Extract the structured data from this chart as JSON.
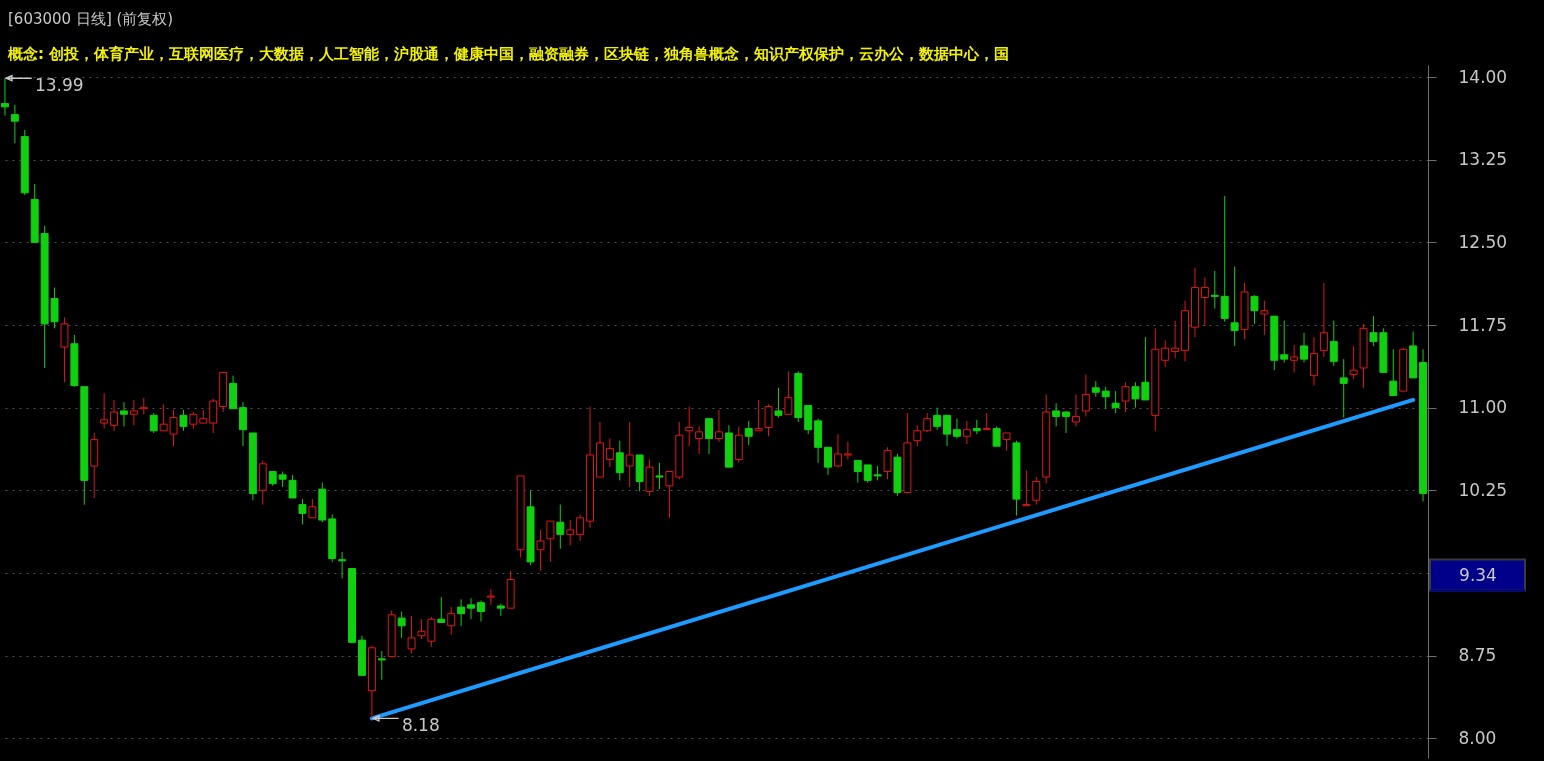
{
  "chart_data": {
    "type": "candlestick",
    "title": "[603000 日线]  (前复权)",
    "subtitle": "概念: 创投，体育产业，互联网医疗，大数据，人工智能，沪股通，健康中国，融资融券，区块链，独角兽概念，知识产权保护，云办公，数据中心，国",
    "categories": [
      null,
      null,
      null,
      null,
      null,
      null,
      null,
      null,
      null,
      null,
      null,
      null,
      null,
      null,
      null,
      null,
      null,
      null,
      null,
      null,
      null,
      null,
      null,
      null,
      null,
      null,
      null,
      null,
      null,
      null,
      null,
      null,
      null,
      null,
      null,
      null,
      null,
      null,
      null,
      null,
      null,
      null,
      null,
      null,
      null,
      null,
      null,
      null,
      null,
      null,
      null,
      null,
      null,
      null,
      null,
      null,
      null,
      null,
      null,
      null,
      null,
      null,
      null,
      null,
      null,
      null,
      null,
      null,
      null,
      null,
      null,
      null,
      null,
      null,
      null,
      null,
      null,
      null,
      null,
      null,
      null,
      null,
      null,
      null,
      null,
      null,
      null,
      null,
      null,
      null,
      null,
      null,
      null,
      null,
      null,
      null,
      null,
      null,
      null,
      null,
      null,
      null,
      null,
      null,
      null,
      null,
      null,
      null,
      null,
      null,
      null,
      null,
      null,
      null,
      null,
      null,
      null,
      null,
      null,
      null,
      null,
      null,
      null,
      null,
      null,
      null,
      null,
      null,
      null,
      null,
      null,
      null,
      null,
      null,
      null,
      null,
      null,
      null,
      null,
      null,
      null,
      null,
      null,
      null
    ],
    "ohlc": [
      [
        13.76,
        13.99,
        13.65,
        13.73
      ],
      [
        13.66,
        13.75,
        13.4,
        13.6
      ],
      [
        13.46,
        13.52,
        12.93,
        12.95
      ],
      [
        12.89,
        13.03,
        12.5,
        12.5
      ],
      [
        12.58,
        12.65,
        11.36,
        11.76
      ],
      [
        11.99,
        12.09,
        11.72,
        11.78
      ],
      [
        11.55,
        11.82,
        11.23,
        11.76
      ],
      [
        11.58,
        11.66,
        11.19,
        11.2
      ],
      [
        11.19,
        11.19,
        10.12,
        10.34
      ],
      [
        10.47,
        10.77,
        10.18,
        10.71
      ],
      [
        10.86,
        11.13,
        10.81,
        10.89
      ],
      [
        10.84,
        11.07,
        10.79,
        10.96
      ],
      [
        10.97,
        11.05,
        10.83,
        10.94
      ],
      [
        10.94,
        11.07,
        10.84,
        10.97
      ],
      [
        10.99,
        11.09,
        10.94,
        11.0
      ],
      [
        10.93,
        10.95,
        10.77,
        10.79
      ],
      [
        10.79,
        11.03,
        10.79,
        10.85
      ],
      [
        10.76,
        10.98,
        10.65,
        10.91
      ],
      [
        10.93,
        10.98,
        10.79,
        10.83
      ],
      [
        10.85,
        10.96,
        10.81,
        10.94
      ],
      [
        10.86,
        10.98,
        10.86,
        10.9
      ],
      [
        10.86,
        11.08,
        10.77,
        11.06
      ],
      [
        11.01,
        11.32,
        10.96,
        11.32
      ],
      [
        11.22,
        11.29,
        10.99,
        10.99
      ],
      [
        11.0,
        11.05,
        10.65,
        10.8
      ],
      [
        10.77,
        10.77,
        10.16,
        10.22
      ],
      [
        10.25,
        10.52,
        10.12,
        10.49
      ],
      [
        10.42,
        10.42,
        10.29,
        10.31
      ],
      [
        10.39,
        10.42,
        10.28,
        10.35
      ],
      [
        10.34,
        10.39,
        10.18,
        10.18
      ],
      [
        10.12,
        10.17,
        9.94,
        10.04
      ],
      [
        10.0,
        10.17,
        10.0,
        10.1
      ],
      [
        10.26,
        10.32,
        9.96,
        9.98
      ],
      [
        9.99,
        10.03,
        9.6,
        9.63
      ],
      [
        9.62,
        9.69,
        9.45,
        9.61
      ],
      [
        9.54,
        9.54,
        8.86,
        8.87
      ],
      [
        8.89,
        8.93,
        8.57,
        8.57
      ],
      [
        8.43,
        8.84,
        8.18,
        8.82
      ],
      [
        8.72,
        8.79,
        8.53,
        8.71
      ],
      [
        8.74,
        9.16,
        8.74,
        9.12
      ],
      [
        9.09,
        9.15,
        8.91,
        9.02
      ],
      [
        8.81,
        9.11,
        8.77,
        8.91
      ],
      [
        8.93,
        9.08,
        8.9,
        8.97
      ],
      [
        8.88,
        9.1,
        8.83,
        9.08
      ],
      [
        9.08,
        9.28,
        9.05,
        9.05
      ],
      [
        9.02,
        9.19,
        8.94,
        9.13
      ],
      [
        9.19,
        9.26,
        9.02,
        9.13
      ],
      [
        9.21,
        9.27,
        9.08,
        9.18
      ],
      [
        9.23,
        9.25,
        9.06,
        9.15
      ],
      [
        9.28,
        9.35,
        9.21,
        9.29
      ],
      [
        9.2,
        9.22,
        9.11,
        9.18
      ],
      [
        9.18,
        9.52,
        9.18,
        9.44
      ],
      [
        9.71,
        10.38,
        9.64,
        10.38
      ],
      [
        10.1,
        10.25,
        9.57,
        9.6
      ],
      [
        9.71,
        9.89,
        9.52,
        9.79
      ],
      [
        9.81,
        9.97,
        9.6,
        9.97
      ],
      [
        9.96,
        10.12,
        9.72,
        9.85
      ],
      [
        9.85,
        9.98,
        9.75,
        9.89
      ],
      [
        9.85,
        10.03,
        9.79,
        10.0
      ],
      [
        9.97,
        11.01,
        9.91,
        10.57
      ],
      [
        10.37,
        10.87,
        10.37,
        10.68
      ],
      [
        10.53,
        10.72,
        10.46,
        10.63
      ],
      [
        10.59,
        10.7,
        10.34,
        10.41
      ],
      [
        10.47,
        10.87,
        10.28,
        10.57
      ],
      [
        10.57,
        10.57,
        10.24,
        10.33
      ],
      [
        10.24,
        10.53,
        10.2,
        10.46
      ],
      [
        10.38,
        10.5,
        10.26,
        10.37
      ],
      [
        10.29,
        10.42,
        10.0,
        10.42
      ],
      [
        10.37,
        10.87,
        10.35,
        10.75
      ],
      [
        10.79,
        11.01,
        10.65,
        10.82
      ],
      [
        10.72,
        10.83,
        10.58,
        10.78
      ],
      [
        10.9,
        10.9,
        10.58,
        10.72
      ],
      [
        10.72,
        10.98,
        10.69,
        10.78
      ],
      [
        10.77,
        10.84,
        10.46,
        10.46
      ],
      [
        10.53,
        10.83,
        10.5,
        10.75
      ],
      [
        10.81,
        10.88,
        10.66,
        10.74
      ],
      [
        10.79,
        11.07,
        10.79,
        10.81
      ],
      [
        10.82,
        11.03,
        10.74,
        11.01
      ],
      [
        10.97,
        11.18,
        10.91,
        10.93
      ],
      [
        10.94,
        11.33,
        10.94,
        11.09
      ],
      [
        11.31,
        11.33,
        10.87,
        10.91
      ],
      [
        11.02,
        11.02,
        10.76,
        10.8
      ],
      [
        10.88,
        10.9,
        10.5,
        10.64
      ],
      [
        10.64,
        10.64,
        10.39,
        10.46
      ],
      [
        10.47,
        10.76,
        10.46,
        10.58
      ],
      [
        10.57,
        10.69,
        10.53,
        10.58
      ],
      [
        10.52,
        10.52,
        10.32,
        10.42
      ],
      [
        10.48,
        10.48,
        10.32,
        10.34
      ],
      [
        10.39,
        10.47,
        10.34,
        10.38
      ],
      [
        10.42,
        10.64,
        10.35,
        10.61
      ],
      [
        10.55,
        10.58,
        10.2,
        10.23
      ],
      [
        10.23,
        10.95,
        10.23,
        10.68
      ],
      [
        10.7,
        10.84,
        10.65,
        10.79
      ],
      [
        10.79,
        10.95,
        10.78,
        10.9
      ],
      [
        10.93,
        11.0,
        10.8,
        10.83
      ],
      [
        10.93,
        10.93,
        10.65,
        10.76
      ],
      [
        10.8,
        10.9,
        10.72,
        10.74
      ],
      [
        10.74,
        10.88,
        10.67,
        10.8
      ],
      [
        10.81,
        10.89,
        10.76,
        10.79
      ],
      [
        10.8,
        10.95,
        10.8,
        10.81
      ],
      [
        10.81,
        10.83,
        10.65,
        10.65
      ],
      [
        10.71,
        10.77,
        10.61,
        10.77
      ],
      [
        10.68,
        10.7,
        10.02,
        10.17
      ],
      [
        10.11,
        10.43,
        10.11,
        10.12
      ],
      [
        10.16,
        10.37,
        10.12,
        10.33
      ],
      [
        10.37,
        11.12,
        10.31,
        10.96
      ],
      [
        10.97,
        11.04,
        10.83,
        10.92
      ],
      [
        10.96,
        10.97,
        10.77,
        10.92
      ],
      [
        10.87,
        11.12,
        10.83,
        10.92
      ],
      [
        10.97,
        11.3,
        10.92,
        11.12
      ],
      [
        11.18,
        11.24,
        11.1,
        11.14
      ],
      [
        11.15,
        11.19,
        10.99,
        11.1
      ],
      [
        11.04,
        11.15,
        10.95,
        11.0
      ],
      [
        11.06,
        11.23,
        10.96,
        11.19
      ],
      [
        11.19,
        11.23,
        11.0,
        11.08
      ],
      [
        11.23,
        11.64,
        11.07,
        11.07
      ],
      [
        10.93,
        11.72,
        10.79,
        11.53
      ],
      [
        11.43,
        11.61,
        11.37,
        11.54
      ],
      [
        11.51,
        11.79,
        11.45,
        11.54
      ],
      [
        11.52,
        11.97,
        11.42,
        11.88
      ],
      [
        11.73,
        12.27,
        11.64,
        12.09
      ],
      [
        12.0,
        12.18,
        11.74,
        12.09
      ],
      [
        12.02,
        12.24,
        11.9,
        12.01
      ],
      [
        12.01,
        12.92,
        11.78,
        11.81
      ],
      [
        11.77,
        12.28,
        11.56,
        11.7
      ],
      [
        11.71,
        12.13,
        11.62,
        12.05
      ],
      [
        12.01,
        12.02,
        11.76,
        11.88
      ],
      [
        11.85,
        11.97,
        11.66,
        11.88
      ],
      [
        11.83,
        11.83,
        11.34,
        11.43
      ],
      [
        11.48,
        11.79,
        11.41,
        11.44
      ],
      [
        11.43,
        11.57,
        11.32,
        11.46
      ],
      [
        11.56,
        11.68,
        11.41,
        11.44
      ],
      [
        11.29,
        11.64,
        11.2,
        11.49
      ],
      [
        11.52,
        12.13,
        11.46,
        11.68
      ],
      [
        11.6,
        11.79,
        11.38,
        11.42
      ],
      [
        11.27,
        11.44,
        10.91,
        11.22
      ],
      [
        11.3,
        11.56,
        11.26,
        11.34
      ],
      [
        11.36,
        11.76,
        11.18,
        11.72
      ],
      [
        11.68,
        11.83,
        11.56,
        11.6
      ],
      [
        11.68,
        11.72,
        11.32,
        11.32
      ],
      [
        11.24,
        11.53,
        11.11,
        11.11
      ],
      [
        11.15,
        11.54,
        11.15,
        11.53
      ],
      [
        11.56,
        11.69,
        11.27,
        11.27
      ],
      [
        11.41,
        11.53,
        10.15,
        10.22
      ]
    ],
    "colors": [
      "#10d010",
      "#10d010",
      "#10d010",
      "#10d010",
      "#10d010",
      "#10d010",
      "#e01818",
      "#10d010",
      "#10d010",
      "#e01818",
      "#e01818",
      "#e01818",
      "#10d010",
      "#e01818",
      "#e01818",
      "#10d010",
      "#e01818",
      "#e01818",
      "#10d010",
      "#e01818",
      "#e01818",
      "#e01818",
      "#e01818",
      "#10d010",
      "#10d010",
      "#10d010",
      "#e01818",
      "#10d010",
      "#10d010",
      "#10d010",
      "#10d010",
      "#e01818",
      "#10d010",
      "#10d010",
      "#10d010",
      "#10d010",
      "#10d010",
      "#e01818",
      "#10d010",
      "#e01818",
      "#10d010",
      "#e01818",
      "#e01818",
      "#e01818",
      "#10d010",
      "#e01818",
      "#10d010",
      "#10d010",
      "#10d010",
      "#e01818",
      "#10d010",
      "#e01818",
      "#e01818",
      "#10d010",
      "#e01818",
      "#e01818",
      "#10d010",
      "#e01818",
      "#e01818",
      "#e01818",
      "#e01818",
      "#e01818",
      "#10d010",
      "#e01818",
      "#10d010",
      "#e01818",
      "#10d010",
      "#e01818",
      "#e01818",
      "#e01818",
      "#e01818",
      "#10d010",
      "#e01818",
      "#10d010",
      "#e01818",
      "#10d010",
      "#e01818",
      "#e01818",
      "#10d010",
      "#e01818",
      "#10d010",
      "#10d010",
      "#10d010",
      "#10d010",
      "#e01818",
      "#e01818",
      "#10d010",
      "#10d010",
      "#10d010",
      "#e01818",
      "#10d010",
      "#e01818",
      "#e01818",
      "#e01818",
      "#10d010",
      "#10d010",
      "#10d010",
      "#e01818",
      "#10d010",
      "#e01818",
      "#10d010",
      "#e01818",
      "#10d010",
      "#e01818",
      "#e01818",
      "#e01818",
      "#10d010",
      "#10d010",
      "#e01818",
      "#e01818",
      "#10d010",
      "#10d010",
      "#10d010",
      "#e01818",
      "#10d010",
      "#10d010",
      "#e01818",
      "#e01818",
      "#e01818",
      "#e01818",
      "#e01818",
      "#e01818",
      "#10d010",
      "#10d010",
      "#10d010",
      "#e01818",
      "#10d010",
      "#e01818",
      "#10d010",
      "#10d010",
      "#e01818",
      "#10d010",
      "#e01818",
      "#e01818",
      "#10d010",
      "#10d010",
      "#e01818",
      "#e01818",
      "#10d010",
      "#10d010",
      "#10d010",
      "#e01818",
      "#10d010",
      "#10d010"
    ],
    "series": [
      {
        "type": "line",
        "color": "#1e9bff",
        "line_style": "solid",
        "values": [
          null,
          null,
          null,
          null,
          null,
          null,
          null,
          null,
          null,
          null,
          null,
          null,
          null,
          null,
          null,
          null,
          null,
          null,
          null,
          null,
          null,
          null,
          null,
          null,
          null,
          null,
          null,
          null,
          null,
          null,
          null,
          null,
          null,
          null,
          null,
          null,
          null,
          8.18,
          null,
          null,
          null,
          null,
          null,
          null,
          null,
          null,
          null,
          null,
          null,
          null,
          null,
          null,
          null,
          null,
          null,
          null,
          null,
          null,
          null,
          null,
          null,
          null,
          null,
          null,
          null,
          null,
          null,
          null,
          null,
          null,
          null,
          null,
          null,
          null,
          null,
          null,
          null,
          null,
          null,
          null,
          null,
          null,
          null,
          null,
          null,
          null,
          null,
          null,
          null,
          null,
          null,
          null,
          null,
          null,
          null,
          null,
          null,
          null,
          null,
          null,
          null,
          null,
          null,
          null,
          null,
          null,
          null,
          null,
          null,
          null,
          null,
          null,
          null,
          null,
          null,
          null,
          null,
          null,
          null,
          null,
          null,
          null,
          null,
          null,
          null,
          null,
          null,
          null,
          null,
          null,
          null,
          null,
          null,
          null,
          null,
          null,
          null,
          null,
          null,
          null,
          null,
          null,
          11.07,
          null
        ]
      }
    ],
    "ylim": [
      7.82,
      14.11
    ],
    "yticks": [
      {
        "value": 8,
        "label": "8.00"
      },
      {
        "value": 8.75,
        "label": "8.75"
      },
      {
        "value": 9.5,
        "label": null
      },
      {
        "value": 10.25,
        "label": "10.25"
      },
      {
        "value": 11,
        "label": "11.00"
      },
      {
        "value": 11.75,
        "label": "11.75"
      },
      {
        "value": 12.5,
        "label": "12.50"
      },
      {
        "value": 13.25,
        "label": "13.25"
      },
      {
        "value": 14,
        "label": "14.00"
      }
    ],
    "ref_lines": [
      {
        "axis": "y",
        "value": 9.34,
        "label": "9.34",
        "color": "#000088"
      }
    ],
    "grid": "y",
    "tick_labels": "y",
    "annotations": [
      "13.99",
      "8.18"
    ]
  }
}
